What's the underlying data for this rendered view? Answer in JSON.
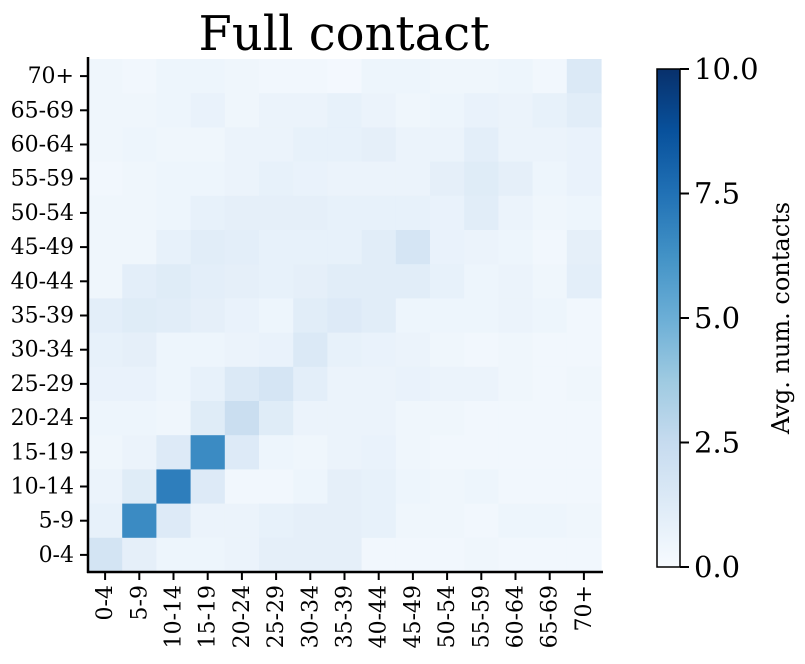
{
  "chart_data": {
    "type": "heatmap",
    "title": "Full contact",
    "xlabel": "",
    "ylabel": "",
    "categories": [
      "0-4",
      "5-9",
      "10-14",
      "15-19",
      "20-24",
      "25-29",
      "30-34",
      "35-39",
      "40-44",
      "45-49",
      "50-54",
      "55-59",
      "60-64",
      "65-69",
      "70+"
    ],
    "rows_top_to_bottom": [
      "70+",
      "65-69",
      "60-64",
      "55-59",
      "50-54",
      "45-49",
      "40-44",
      "35-39",
      "30-34",
      "25-29",
      "20-24",
      "15-19",
      "10-14",
      "5-9",
      "0-4"
    ],
    "values": [
      [
        0.4,
        0.3,
        0.5,
        0.5,
        0.4,
        0.3,
        0.3,
        0.2,
        0.5,
        0.5,
        0.4,
        0.4,
        0.5,
        0.3,
        1.4
      ],
      [
        0.4,
        0.4,
        0.5,
        0.7,
        0.4,
        0.6,
        0.6,
        0.8,
        0.6,
        0.4,
        0.5,
        0.7,
        0.6,
        0.8,
        1.1
      ],
      [
        0.4,
        0.5,
        0.4,
        0.4,
        0.6,
        0.6,
        0.8,
        0.8,
        0.9,
        0.6,
        0.6,
        1.0,
        0.6,
        0.6,
        0.7
      ],
      [
        0.3,
        0.4,
        0.5,
        0.5,
        0.6,
        0.8,
        0.7,
        0.6,
        0.6,
        0.6,
        0.9,
        1.2,
        0.9,
        0.5,
        0.7
      ],
      [
        0.4,
        0.4,
        0.5,
        0.8,
        0.9,
        0.9,
        0.9,
        0.8,
        0.8,
        0.8,
        0.7,
        1.1,
        0.6,
        0.4,
        0.5
      ],
      [
        0.4,
        0.4,
        0.8,
        1.1,
        1.0,
        0.8,
        0.8,
        0.8,
        1.1,
        1.7,
        0.7,
        0.6,
        0.5,
        0.3,
        0.9
      ],
      [
        0.4,
        1.0,
        1.2,
        1.0,
        0.9,
        0.8,
        0.9,
        1.1,
        1.1,
        1.1,
        0.8,
        0.5,
        0.6,
        0.4,
        1.0
      ],
      [
        1.0,
        1.2,
        1.1,
        0.9,
        0.7,
        0.5,
        1.1,
        1.3,
        1.1,
        0.5,
        0.5,
        0.5,
        0.6,
        0.5,
        0.3
      ],
      [
        0.8,
        0.9,
        0.5,
        0.5,
        0.6,
        0.7,
        1.4,
        0.8,
        0.7,
        0.6,
        0.4,
        0.3,
        0.4,
        0.3,
        0.3
      ],
      [
        0.7,
        0.7,
        0.5,
        0.8,
        1.4,
        1.7,
        1.0,
        0.6,
        0.6,
        0.7,
        0.6,
        0.6,
        0.4,
        0.3,
        0.4
      ],
      [
        0.5,
        0.5,
        0.4,
        1.2,
        2.3,
        1.2,
        0.6,
        0.6,
        0.6,
        0.4,
        0.4,
        0.3,
        0.3,
        0.3,
        0.3
      ],
      [
        0.4,
        0.6,
        1.3,
        6.5,
        1.3,
        0.5,
        0.4,
        0.6,
        0.7,
        0.4,
        0.3,
        0.3,
        0.3,
        0.3,
        0.3
      ],
      [
        0.6,
        1.2,
        7.0,
        1.3,
        0.3,
        0.3,
        0.5,
        0.9,
        0.8,
        0.5,
        0.4,
        0.5,
        0.3,
        0.3,
        0.3
      ],
      [
        0.8,
        6.5,
        1.3,
        0.6,
        0.6,
        0.8,
        0.9,
        0.9,
        0.8,
        0.4,
        0.4,
        0.3,
        0.5,
        0.5,
        0.4
      ],
      [
        1.8,
        0.9,
        0.5,
        0.5,
        0.6,
        0.9,
        0.9,
        0.9,
        0.3,
        0.3,
        0.3,
        0.4,
        0.3,
        0.3,
        0.3
      ]
    ],
    "colorscale": "Blues",
    "color_range": [
      0.0,
      10.0
    ],
    "colorbar": {
      "label": "Avg. num. contacts",
      "ticks": [
        0.0,
        2.5,
        5.0,
        7.5,
        10.0
      ],
      "tick_labels": [
        "0.0",
        "2.5",
        "5.0",
        "7.5",
        "10.0"
      ]
    },
    "grid": false,
    "legend": "none"
  }
}
